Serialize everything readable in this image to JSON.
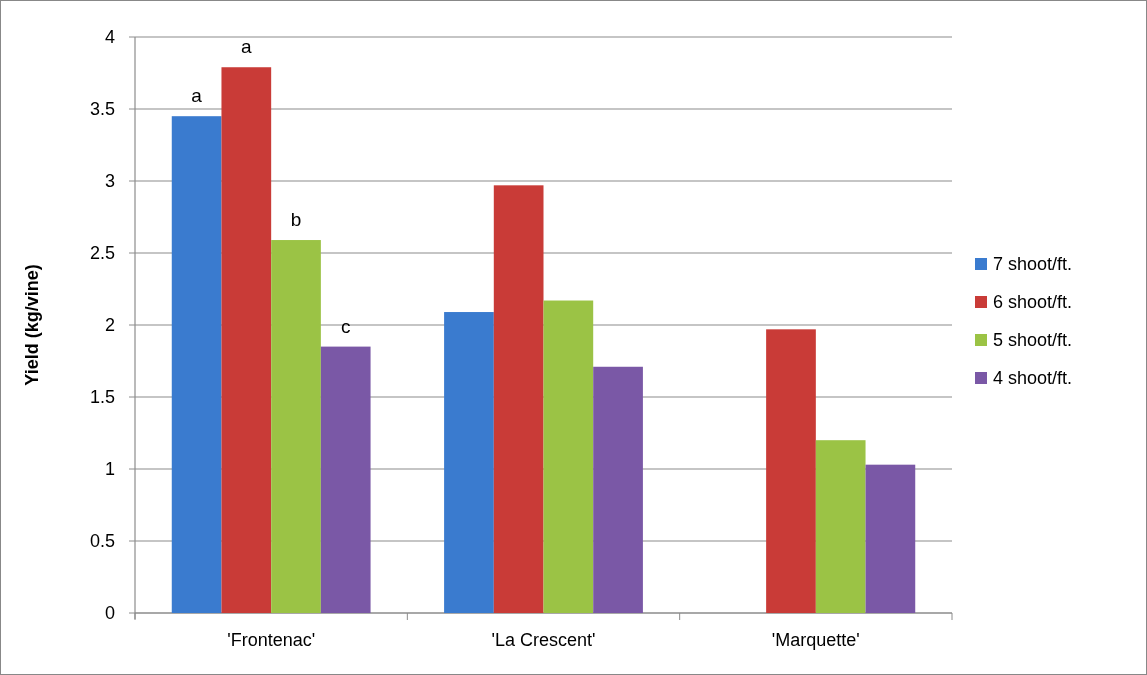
{
  "chart_data": {
    "type": "bar",
    "ylabel": "Yield (kg/vine)",
    "categories": [
      "'Frontenac'",
      "'La Crescent'",
      "'Marquette'"
    ],
    "series": [
      {
        "name": "7 shoot/ft.",
        "color": "#3a7bcf",
        "values": [
          3.45,
          2.09,
          null
        ]
      },
      {
        "name": "6 shoot/ft.",
        "color": "#c93b37",
        "values": [
          3.79,
          2.97,
          1.97
        ]
      },
      {
        "name": "5 shoot/ft.",
        "color": "#9bc345",
        "values": [
          2.59,
          2.17,
          1.2
        ]
      },
      {
        "name": "4 shoot/ft.",
        "color": "#7a58a6",
        "values": [
          1.85,
          1.71,
          1.03
        ]
      }
    ],
    "ylim": [
      0,
      4
    ],
    "yticks": [
      0,
      0.5,
      1,
      1.5,
      2,
      2.5,
      3,
      3.5,
      4
    ],
    "grid": "y",
    "legend": "right",
    "annotations": [
      "a",
      "a",
      "b",
      "c"
    ]
  }
}
